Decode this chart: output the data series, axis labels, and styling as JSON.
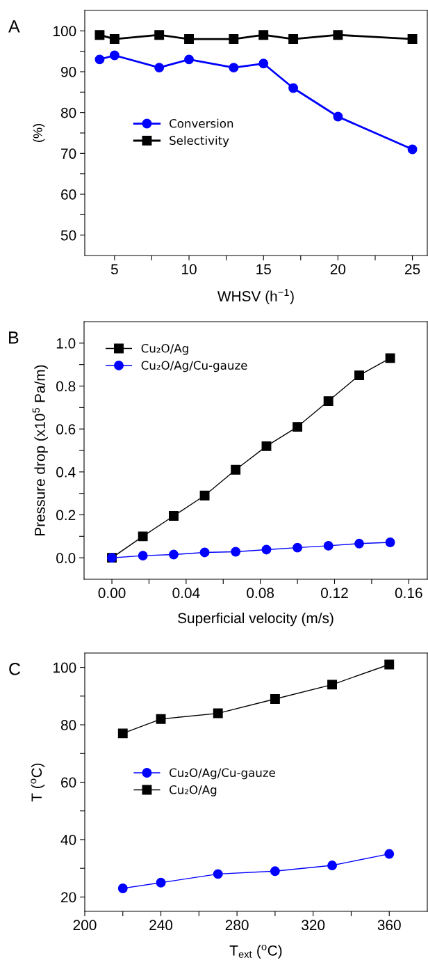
{
  "chart_data": [
    {
      "type": "line",
      "title": "A",
      "xlabel": "WHSV (h$^{−1}$)",
      "ylabel": "(%)",
      "xlim": [
        3,
        26
      ],
      "ylim": [
        45,
        105
      ],
      "xticks": [
        5,
        {
          "value": 7.5,
          "label": null
        },
        10,
        {
          "value": 12.5,
          "label": null
        },
        15,
        {
          "value": 17.5,
          "label": null
        },
        20,
        {
          "value": 22.5,
          "label": null
        },
        25
      ],
      "yticks": [
        50,
        {
          "value": 55,
          "label": null
        },
        60,
        {
          "value": 65,
          "label": null
        },
        70,
        {
          "value": 75,
          "label": null
        },
        80,
        {
          "value": 85,
          "label": null
        },
        90,
        {
          "value": 95,
          "label": null
        },
        100
      ],
      "legend": "center left",
      "grid": false,
      "series": [
        {
          "name": "Conversion",
          "color": "#0000ff",
          "marker": "circle",
          "x": [
            4,
            5,
            8,
            10,
            13,
            15,
            17,
            20,
            25
          ],
          "values": [
            93,
            94,
            91,
            93,
            91,
            92,
            86,
            79,
            71
          ]
        },
        {
          "name": "Selectivity",
          "color": "#000000",
          "marker": "square",
          "x": [
            4,
            5,
            8,
            10,
            13,
            15,
            17,
            20,
            25
          ],
          "values": [
            99,
            98,
            99,
            98,
            98,
            99,
            98,
            99,
            98
          ]
        }
      ]
    },
    {
      "type": "line",
      "title": "B",
      "xlabel": "Superficial velocity (m/s)",
      "ylabel": "Pressure drop (x10$^{5}$ Pa/m)",
      "xlim": [
        -0.015,
        0.17
      ],
      "ylim": [
        -0.1,
        1.1
      ],
      "xticks": [
        {
          "value": 0,
          "label": "0.00"
        },
        {
          "value": 0.02,
          "label": null
        },
        0.04,
        {
          "value": 0.06,
          "label": null
        },
        0.08,
        {
          "value": 0.1,
          "label": null
        },
        0.12,
        {
          "value": 0.14,
          "label": null
        },
        0.16
      ],
      "yticks": [
        {
          "value": 0,
          "label": "0.0"
        },
        {
          "value": 0.1,
          "label": null
        },
        0.2,
        {
          "value": 0.3,
          "label": null
        },
        0.4,
        {
          "value": 0.5,
          "label": null
        },
        0.6,
        {
          "value": 0.7,
          "label": null
        },
        0.8,
        {
          "value": 0.9,
          "label": null
        },
        {
          "value": 1,
          "label": "1.0"
        }
      ],
      "legend": "upper left",
      "grid": false,
      "series": [
        {
          "name": "Cu₂O/Ag",
          "color": "#000000",
          "marker": "square",
          "x": [
            0,
            0.0167,
            0.0333,
            0.05,
            0.0667,
            0.0833,
            0.1,
            0.1167,
            0.1333,
            0.15
          ],
          "values": [
            0,
            0.1,
            0.195,
            0.29,
            0.41,
            0.52,
            0.61,
            0.73,
            0.85,
            0.93
          ]
        },
        {
          "name": "Cu₂O/Ag/Cu-gauze",
          "color": "#0000ff",
          "marker": "circle",
          "x": [
            0,
            0.0167,
            0.0333,
            0.05,
            0.0667,
            0.0833,
            0.1,
            0.1167,
            0.1333,
            0.15
          ],
          "values": [
            0,
            0.01,
            0.015,
            0.025,
            0.028,
            0.038,
            0.047,
            0.056,
            0.066,
            0.072
          ]
        }
      ]
    },
    {
      "type": "line",
      "title": "C",
      "xlabel": "T$_{ext}$ ($^{o}$C)",
      "ylabel": "T ($^{o}$C)",
      "xlim": [
        200,
        380
      ],
      "ylim": [
        15,
        105
      ],
      "xticks": [
        200,
        {
          "value": 220,
          "label": null
        },
        240,
        {
          "value": 260,
          "label": null
        },
        280,
        {
          "value": 300,
          "label": null
        },
        320,
        {
          "value": 340,
          "label": null
        },
        360
      ],
      "yticks": [
        20,
        {
          "value": 30,
          "label": null
        },
        40,
        {
          "value": 50,
          "label": null
        },
        60,
        {
          "value": 70,
          "label": null
        },
        80,
        {
          "value": 90,
          "label": null
        },
        100
      ],
      "legend": "center left",
      "grid": false,
      "series": [
        {
          "name": "Cu₂O/Ag/Cu-gauze",
          "color": "#0000ff",
          "marker": "circle",
          "x": [
            220,
            240,
            270,
            300,
            330,
            360
          ],
          "values": [
            23,
            25,
            28,
            29,
            31,
            35
          ]
        },
        {
          "name": "Cu₂O/Ag",
          "color": "#000000",
          "marker": "square",
          "x": [
            220,
            240,
            270,
            300,
            330,
            360
          ],
          "values": [
            77,
            82,
            84,
            89,
            94,
            101
          ]
        }
      ]
    }
  ]
}
